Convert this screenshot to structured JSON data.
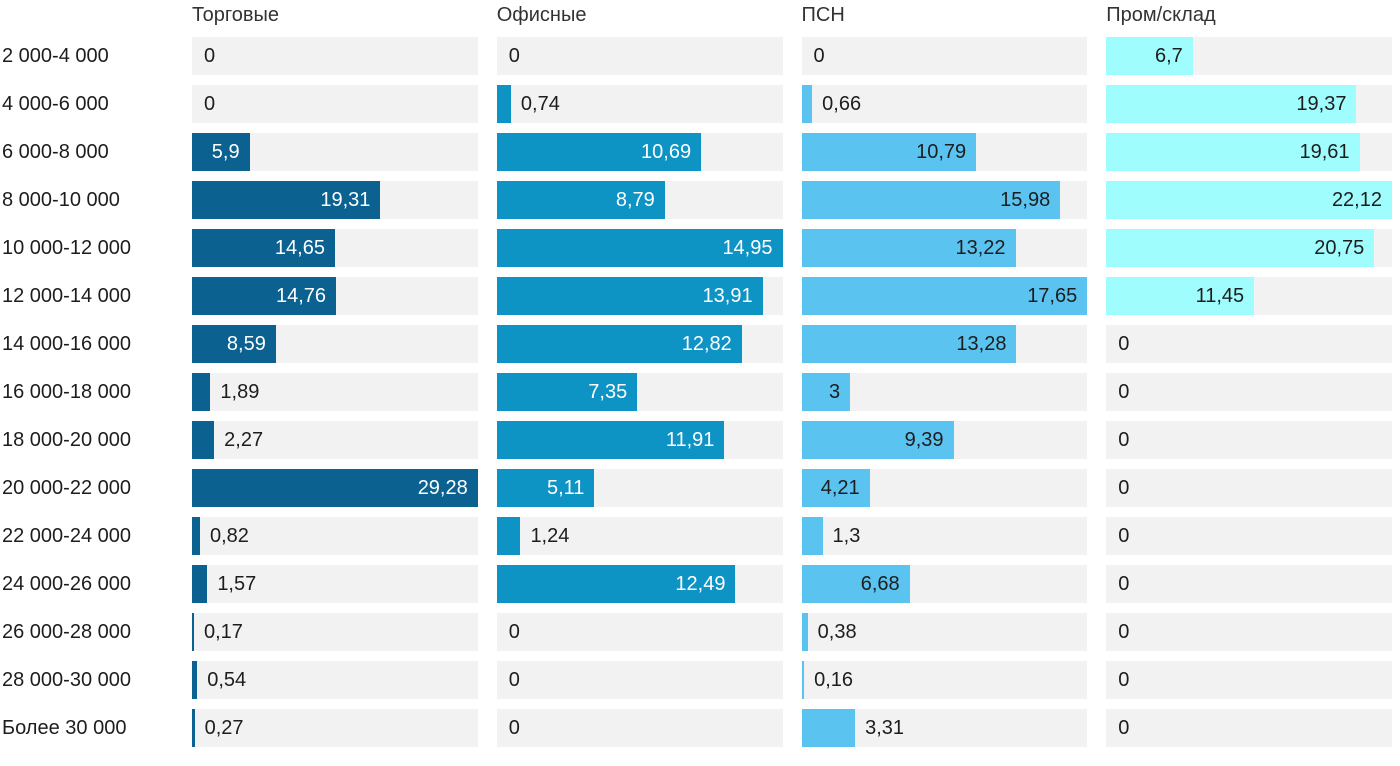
{
  "chart_data": {
    "type": "bar",
    "layout": "split-bars",
    "orientation": "horizontal",
    "grid": false,
    "legend_position": "column-headers",
    "scale_note": "each column scaled independently to its own max value",
    "background": "#ffffff",
    "track_color": "#f2f2f2",
    "category_label_color": "#1d1d1d",
    "header_color": "#333333",
    "value_label_color_outside": "#1d1d1d",
    "categories": [
      "2 000-4 000",
      "4 000-6 000",
      "6 000-8 000",
      "8 000-10 000",
      "10 000-12 000",
      "12 000-14 000",
      "14 000-16 000",
      "16 000-18 000",
      "18 000-20 000",
      "20 000-22 000",
      "22 000-24 000",
      "24 000-26 000",
      "26 000-28 000",
      "28 000-30 000",
      "Более 30 000"
    ],
    "series": [
      {
        "name": "Торговые",
        "color": "#0b6190",
        "label_color_inside": "#ffffff",
        "axis_max": 29.28,
        "values": [
          0,
          0,
          5.9,
          19.31,
          14.65,
          14.76,
          8.59,
          1.89,
          2.27,
          29.28,
          0.82,
          1.57,
          0.17,
          0.54,
          0.27
        ],
        "labels": [
          "0",
          "0",
          "5,9",
          "19,31",
          "14,65",
          "14,76",
          "8,59",
          "1,89",
          "2,27",
          "29,28",
          "0,82",
          "1,57",
          "0,17",
          "0,54",
          "0,27"
        ]
      },
      {
        "name": "Офисные",
        "color": "#0e93c5",
        "label_color_inside": "#ffffff",
        "axis_max": 14.95,
        "values": [
          0,
          0.74,
          10.69,
          8.79,
          14.95,
          13.91,
          12.82,
          7.35,
          11.91,
          5.11,
          1.24,
          12.49,
          0,
          0,
          0
        ],
        "labels": [
          "0",
          "0,74",
          "10,69",
          "8,79",
          "14,95",
          "13,91",
          "12,82",
          "7,35",
          "11,91",
          "5,11",
          "1,24",
          "12,49",
          "0",
          "0",
          "0"
        ]
      },
      {
        "name": "ПСН",
        "color": "#5ac3f0",
        "label_color_inside": "#1d1d1d",
        "axis_max": 17.65,
        "values": [
          0,
          0.66,
          10.79,
          15.98,
          13.22,
          17.65,
          13.28,
          3,
          9.39,
          4.21,
          1.3,
          6.68,
          0.38,
          0.16,
          3.31
        ],
        "labels": [
          "0",
          "0,66",
          "10,79",
          "15,98",
          "13,22",
          "17,65",
          "13,28",
          "3",
          "9,39",
          "4,21",
          "1,3",
          "6,68",
          "0,38",
          "0,16",
          "3,31"
        ]
      },
      {
        "name": "Пром/склад",
        "color": "#9ffdfd",
        "label_color_inside": "#1d1d1d",
        "axis_max": 22.12,
        "values": [
          6.7,
          19.37,
          19.61,
          22.12,
          20.75,
          11.45,
          0,
          0,
          0,
          0,
          0,
          0,
          0,
          0,
          0
        ],
        "labels": [
          "6,7",
          "19,37",
          "19,61",
          "22,12",
          "20,75",
          "11,45",
          "0",
          "0",
          "0",
          "0",
          "0",
          "0",
          "0",
          "0",
          "0"
        ]
      }
    ]
  }
}
